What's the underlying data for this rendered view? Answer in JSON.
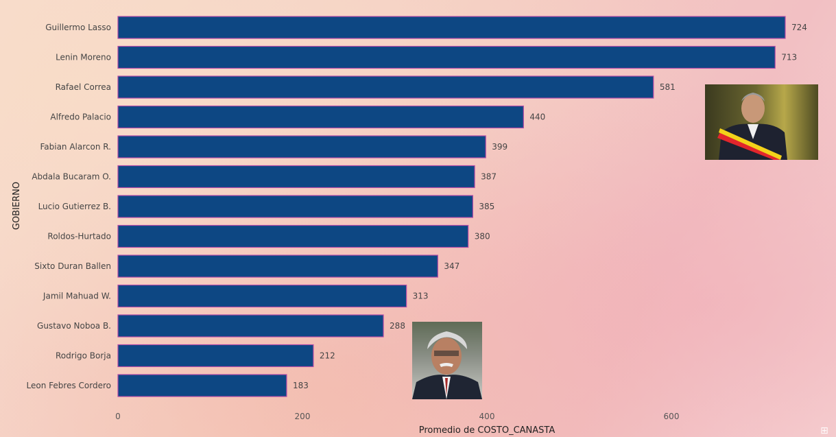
{
  "chart_data": {
    "type": "bar",
    "orientation": "horizontal",
    "categories": [
      "Guillermo Lasso",
      "Lenin Moreno",
      "Rafael Correa",
      "Alfredo Palacio",
      "Fabian Alarcon R.",
      "Abdala Bucaram O.",
      "Lucio Gutierrez B.",
      "Roldos-Hurtado",
      "Sixto Duran Ballen",
      "Jamil Mahuad W.",
      "Gustavo Noboa B.",
      "Rodrigo Borja",
      "Leon Febres Cordero"
    ],
    "values": [
      724,
      713,
      581,
      440,
      399,
      387,
      385,
      380,
      347,
      313,
      288,
      212,
      183
    ],
    "xlabel": "Promedio de COSTO_CANASTA",
    "ylabel": "GOBIERNO",
    "xticks": [
      0,
      200,
      400,
      600
    ],
    "xlim": [
      0,
      724
    ],
    "grid": false,
    "data_labels": true,
    "bar_color": "#0d4783",
    "bar_outline_color": "#b24aa6"
  },
  "photos": {
    "top_right": {
      "icon": "portrait-photo-icon"
    },
    "bottom_center": {
      "icon": "portrait-photo-icon"
    }
  },
  "corner_mark": {
    "icon": "watermark-glyph-icon"
  }
}
